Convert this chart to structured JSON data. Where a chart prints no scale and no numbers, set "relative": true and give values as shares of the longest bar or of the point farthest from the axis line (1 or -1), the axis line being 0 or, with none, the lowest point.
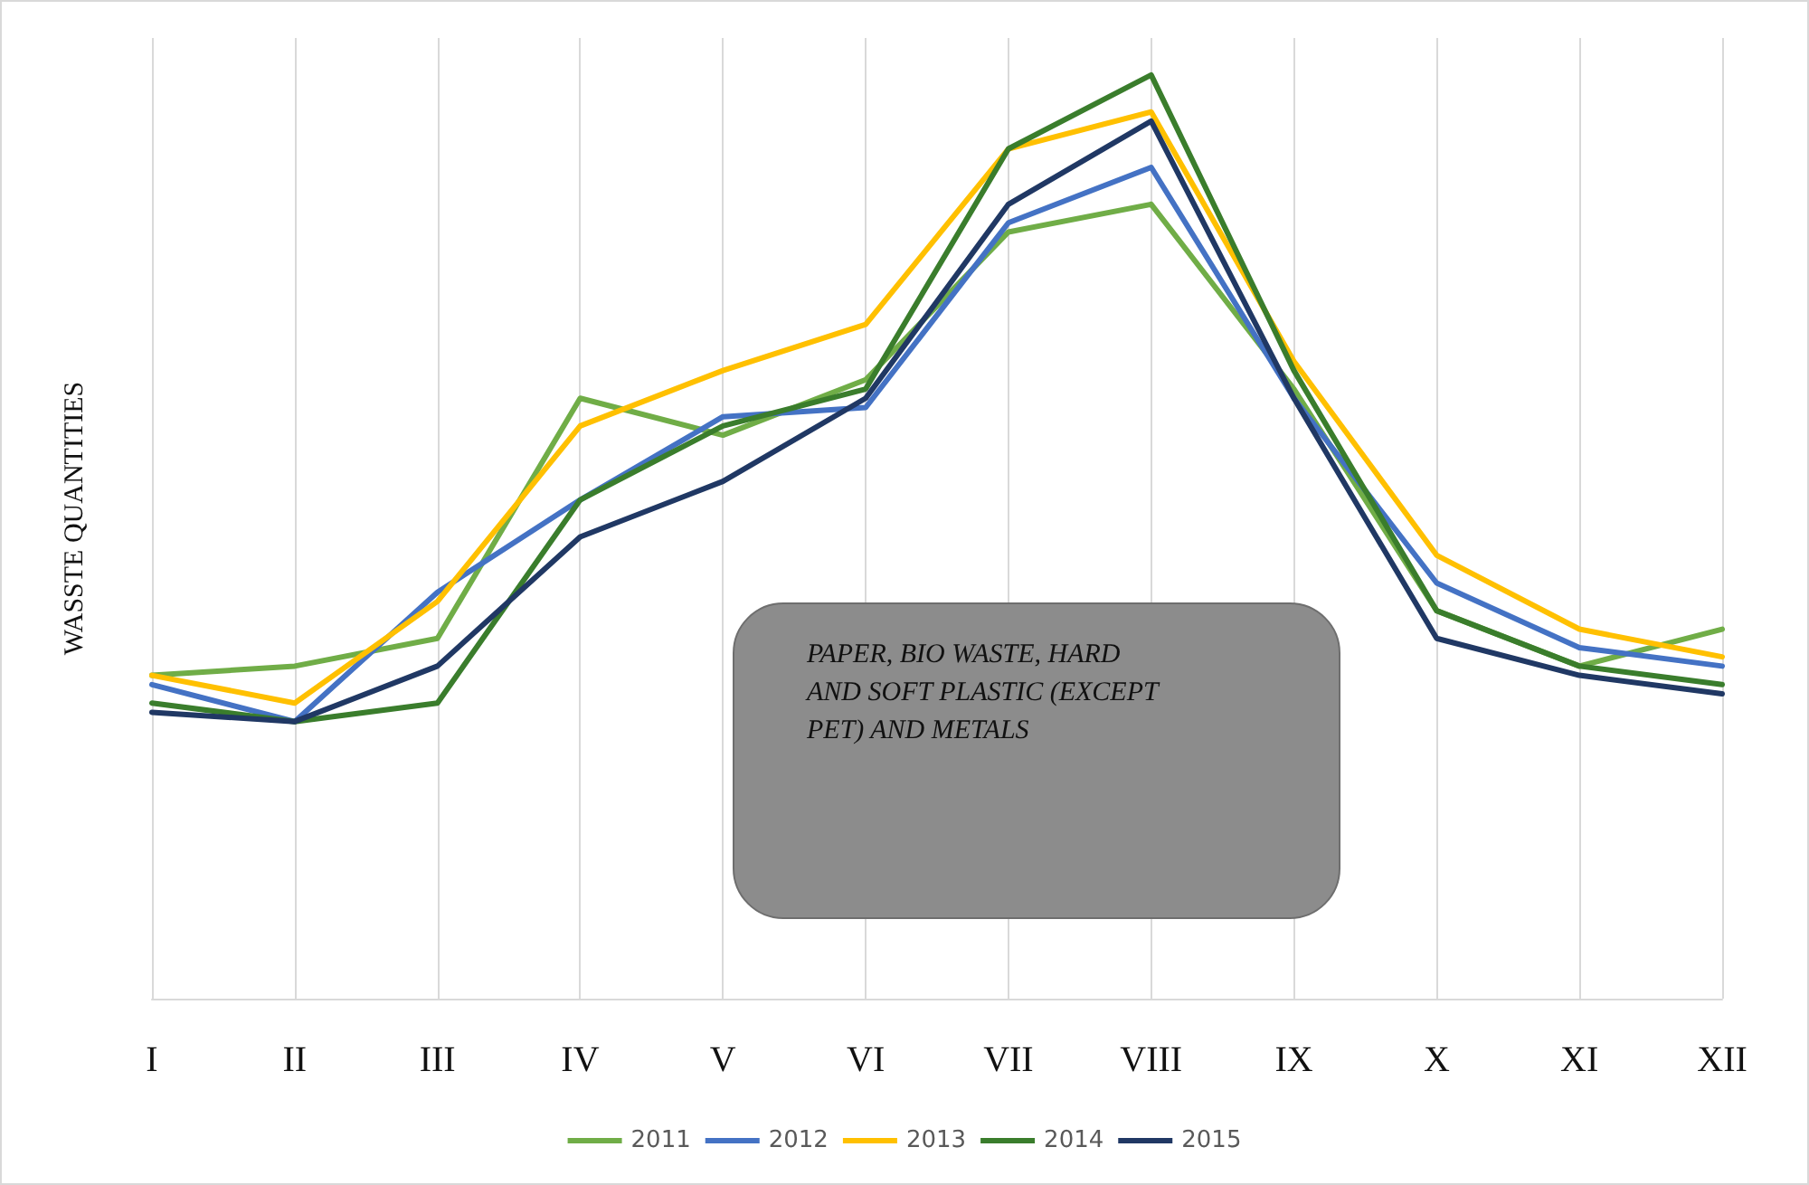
{
  "chart_data": {
    "type": "line",
    "relative": true,
    "ylabel": "WASSTE QUANTITIES",
    "categories": [
      "I",
      "II",
      "III",
      "IV",
      "V",
      "VI",
      "VII",
      "VIII",
      "IX",
      "X",
      "XI",
      "XII"
    ],
    "series": [
      {
        "name": "2011",
        "color": "#70ad47",
        "values": [
          0.35,
          0.36,
          0.39,
          0.65,
          0.61,
          0.67,
          0.83,
          0.86,
          0.66,
          0.42,
          0.36,
          0.4
        ]
      },
      {
        "name": "2012",
        "color": "#4472c4",
        "values": [
          0.34,
          0.3,
          0.44,
          0.54,
          0.63,
          0.64,
          0.84,
          0.9,
          0.65,
          0.45,
          0.38,
          0.36
        ]
      },
      {
        "name": "2013",
        "color": "#ffc000",
        "values": [
          0.35,
          0.32,
          0.43,
          0.62,
          0.68,
          0.73,
          0.92,
          0.96,
          0.69,
          0.48,
          0.4,
          0.37
        ]
      },
      {
        "name": "2014",
        "color": "#3a7d2c",
        "values": [
          0.32,
          0.3,
          0.32,
          0.54,
          0.62,
          0.66,
          0.92,
          1,
          0.68,
          0.42,
          0.36,
          0.34
        ]
      },
      {
        "name": "2015",
        "color": "#203864",
        "values": [
          0.31,
          0.3,
          0.36,
          0.5,
          0.56,
          0.65,
          0.86,
          0.95,
          0.65,
          0.39,
          0.35,
          0.33
        ]
      }
    ],
    "annotations": [
      "PAPER, BIO WASTE, HARD AND SOFT PLASTIC (EXCEPT PET) AND METALS"
    ],
    "grid": "x",
    "legend": "bottom",
    "marker": "none",
    "line_style": "solid"
  }
}
